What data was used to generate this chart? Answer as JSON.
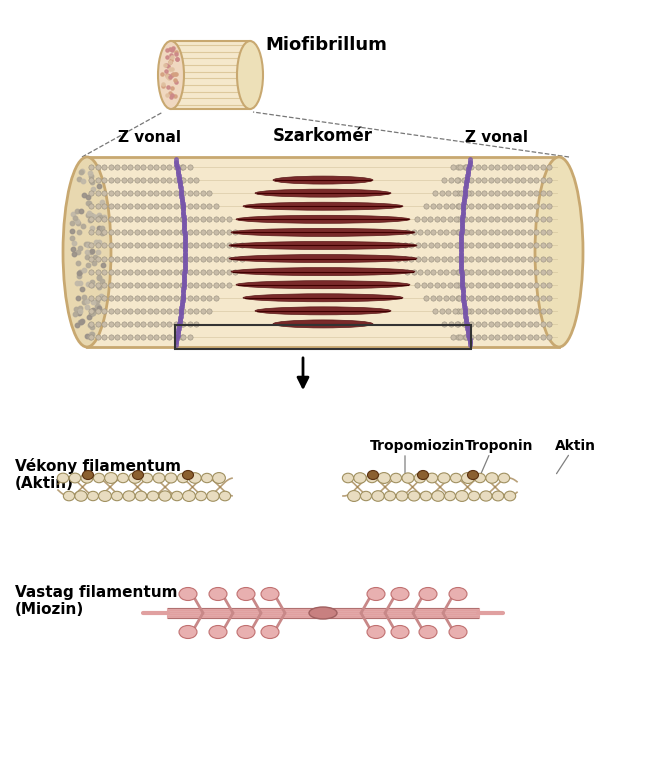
{
  "bg_color": "#ffffff",
  "title_miofibrillum": "Miofibrillum",
  "label_z_vonal_left": "Z vonal",
  "label_z_vonal_right": "Z vonal",
  "label_szarkomer": "Szarkomér",
  "label_thin": "Vékony filamentum\n(Aktin)",
  "label_thick": "Vastag filamentum\n(Miozin)",
  "label_tropomiozin": "Tropomiozin",
  "label_troponin": "Troponin",
  "label_aktin": "Aktin",
  "cylinder_bg": "#f5e8cc",
  "cylinder_border": "#c8a870",
  "z_line_color": "#7755aa",
  "actin_bead_light": "#c8bca8",
  "actin_bead_dark": "#989080",
  "myosin_dark": "#7a2a2a",
  "myosin_mid": "#a03030",
  "thin_bead_fill": "#e8dcc0",
  "thin_bead_edge": "#a09060",
  "thick_pink": "#e0a0a0",
  "thick_stem": "#c88888",
  "thick_head_fill": "#e8b0b0",
  "small_cyl_cross_color": "#cc8888"
}
